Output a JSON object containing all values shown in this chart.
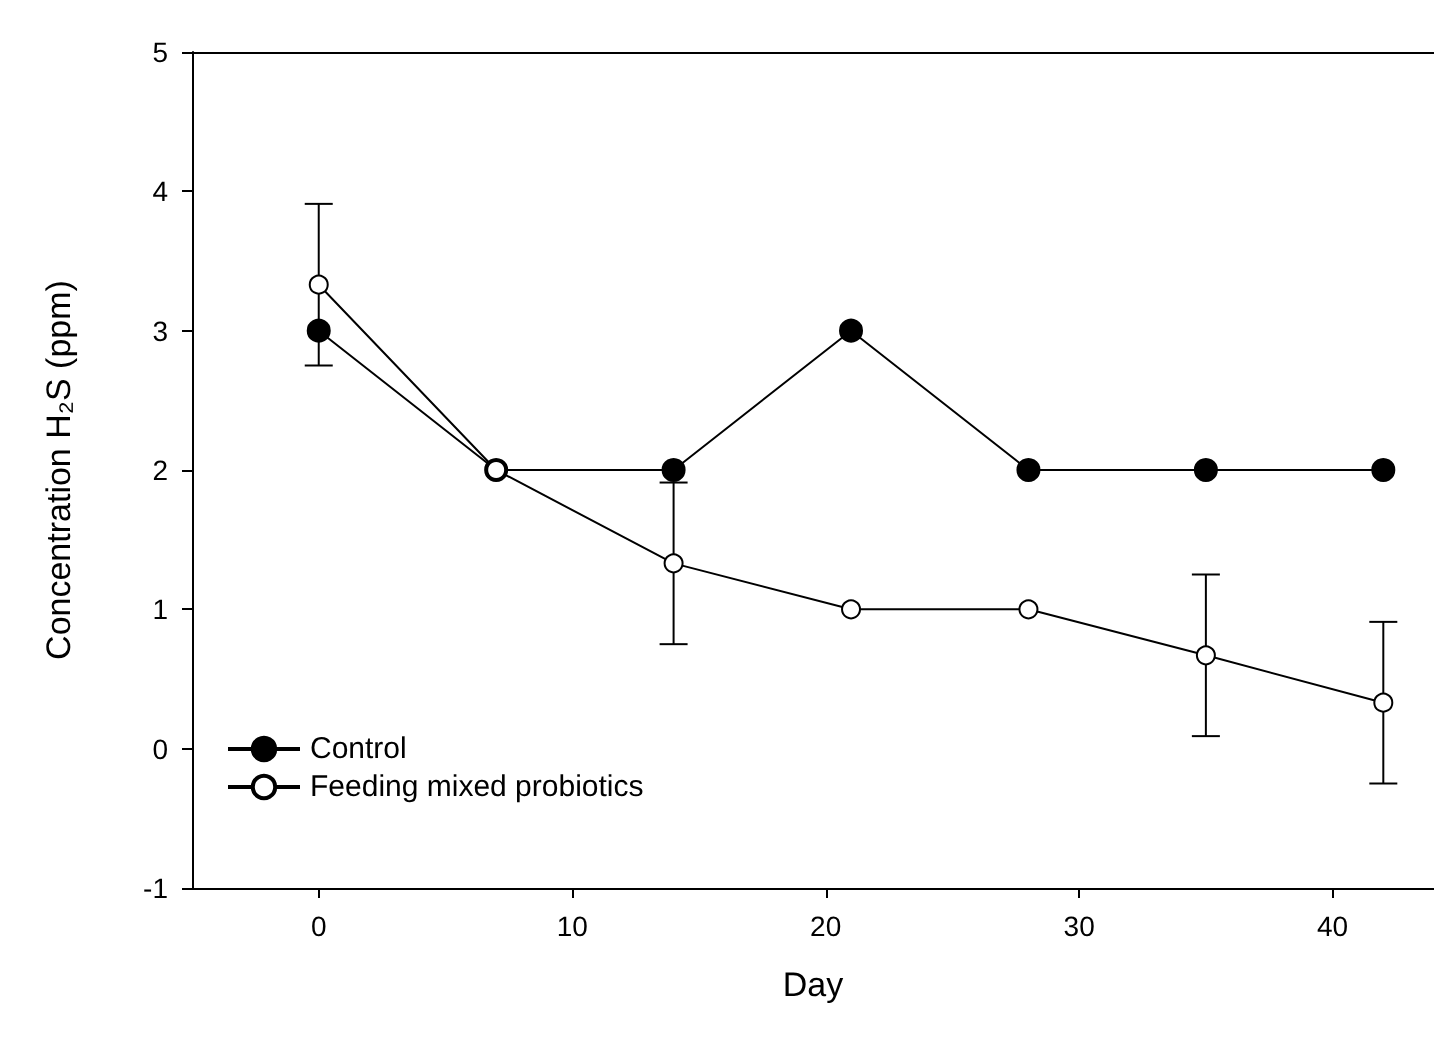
{
  "chart_data": {
    "type": "line",
    "xlabel": "Day",
    "ylabel": "Concentration H₂S (ppm)",
    "x": [
      0,
      7,
      14,
      21,
      28,
      35,
      42
    ],
    "xlim": [
      -5,
      44
    ],
    "xticks": [
      0,
      10,
      20,
      30,
      40
    ],
    "ylim": [
      -1,
      5
    ],
    "yticks": [
      -1,
      0,
      1,
      2,
      3,
      4,
      5
    ],
    "series": [
      {
        "name": "Control",
        "color": "#000000",
        "marker": "circle",
        "values": [
          3,
          2,
          2,
          3,
          2,
          2,
          2
        ]
      },
      {
        "name": "Feeding mixed probiotics",
        "color": "#ffffff",
        "marker": "circle",
        "values": [
          3.33,
          2,
          1.33,
          1,
          1,
          0.67,
          0.33
        ],
        "errors": [
          0.58,
          null,
          0.58,
          null,
          null,
          0.58,
          0.58
        ]
      }
    ],
    "legend": "bottom left",
    "grid": false,
    "line_style": "solid"
  }
}
